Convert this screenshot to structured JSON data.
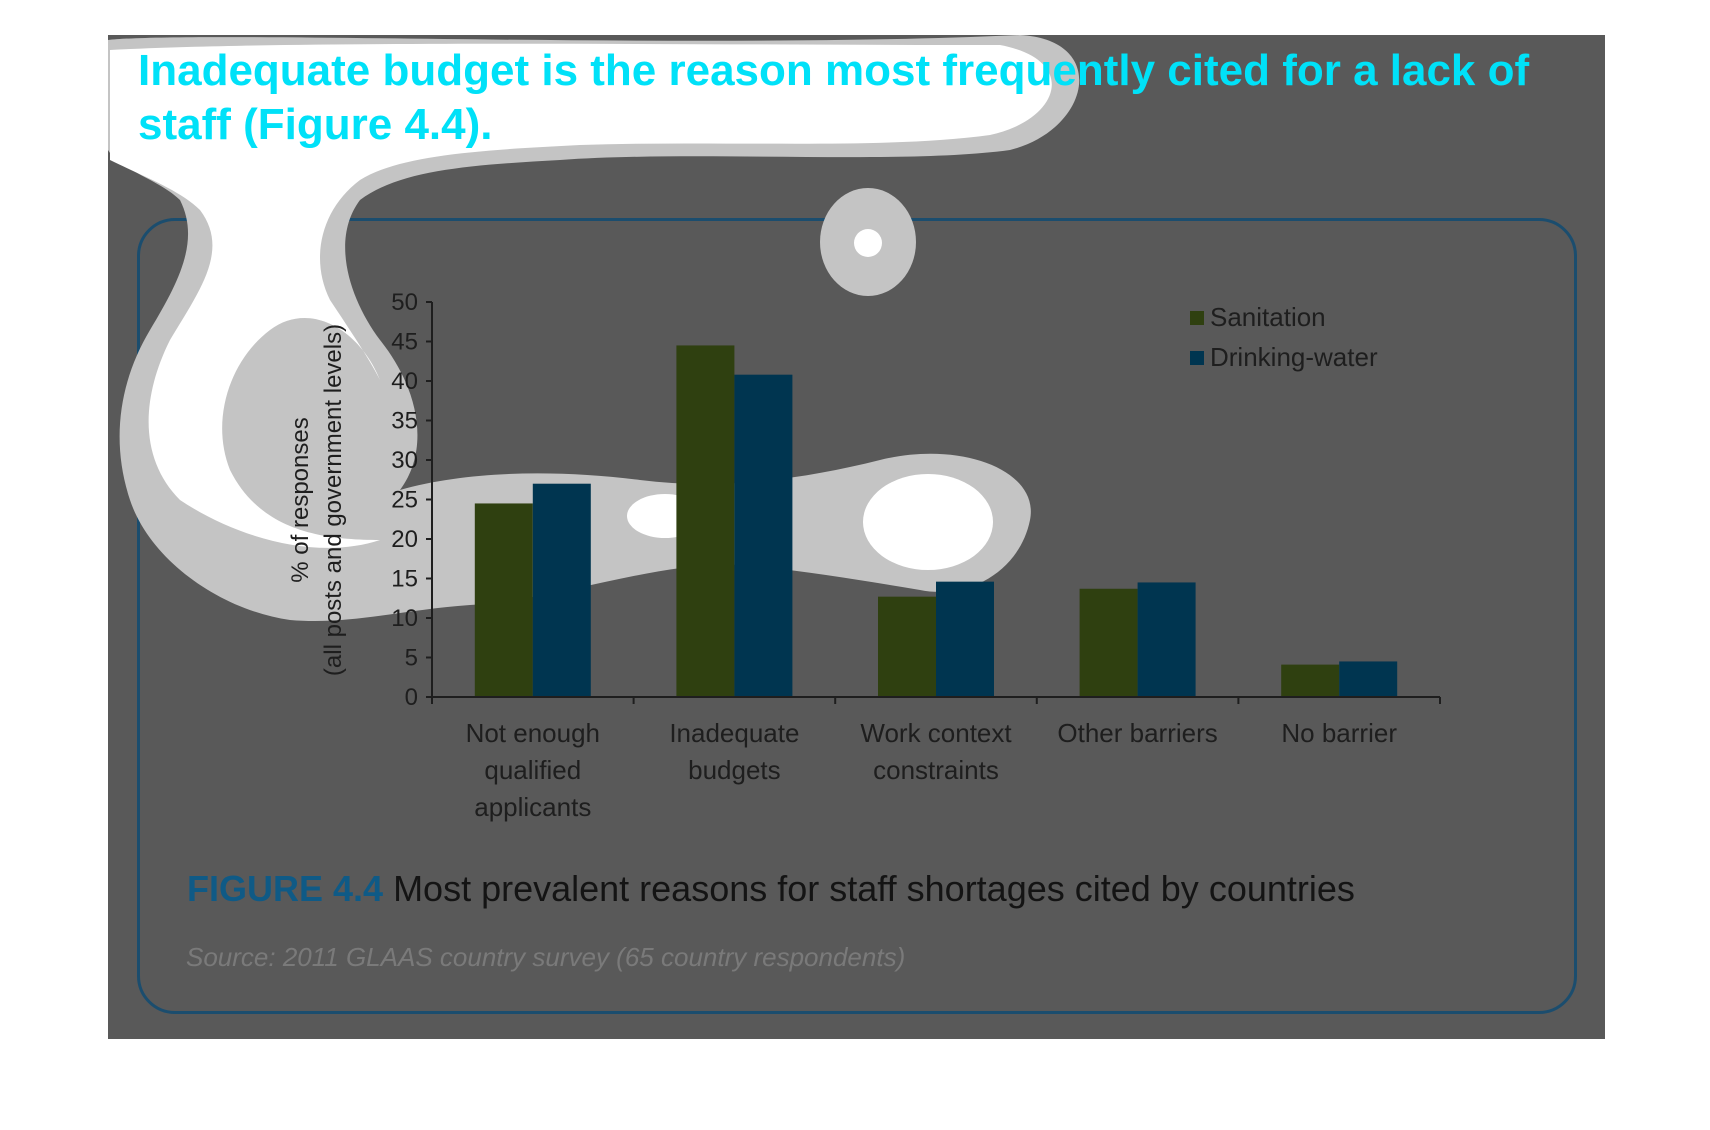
{
  "headline": "Inadequate budget is the reason most frequently cited for a lack of staff (Figure 4.4).",
  "caption": {
    "figure_number": "FIGURE 4.4",
    "text": " Most prevalent reasons for staff shortages cited by countries"
  },
  "source": "Source: 2011 GLAAS country survey (65 country respondents)",
  "colors": {
    "background": "#595959",
    "headline": "#00e1f8",
    "sanitation": "#2f4010",
    "drinking_water": "#003550",
    "overlay": "#c8c8c8"
  },
  "chart_data": {
    "type": "bar",
    "title": "",
    "xlabel": "",
    "ylabel": "% of responses\n(all posts and government levels)",
    "ylabel_lines": [
      "% of responses",
      "(all posts and government levels)"
    ],
    "ylim": [
      0,
      50
    ],
    "yticks": [
      0,
      5,
      10,
      15,
      20,
      25,
      30,
      35,
      40,
      45,
      50
    ],
    "grid": false,
    "legend_position": "top-right",
    "categories": [
      [
        "Not enough",
        "qualified",
        "applicants"
      ],
      [
        "Inadequate",
        "budgets"
      ],
      [
        "Work context",
        "constraints"
      ],
      [
        "Other barriers"
      ],
      [
        "No barrier"
      ]
    ],
    "series": [
      {
        "name": "Sanitation",
        "color": "#2f4010",
        "values": [
          24.5,
          44.5,
          12.7,
          13.7,
          4.1
        ]
      },
      {
        "name": "Drinking-water",
        "color": "#003550",
        "values": [
          27,
          40.8,
          14.6,
          14.5,
          4.5
        ]
      }
    ]
  }
}
